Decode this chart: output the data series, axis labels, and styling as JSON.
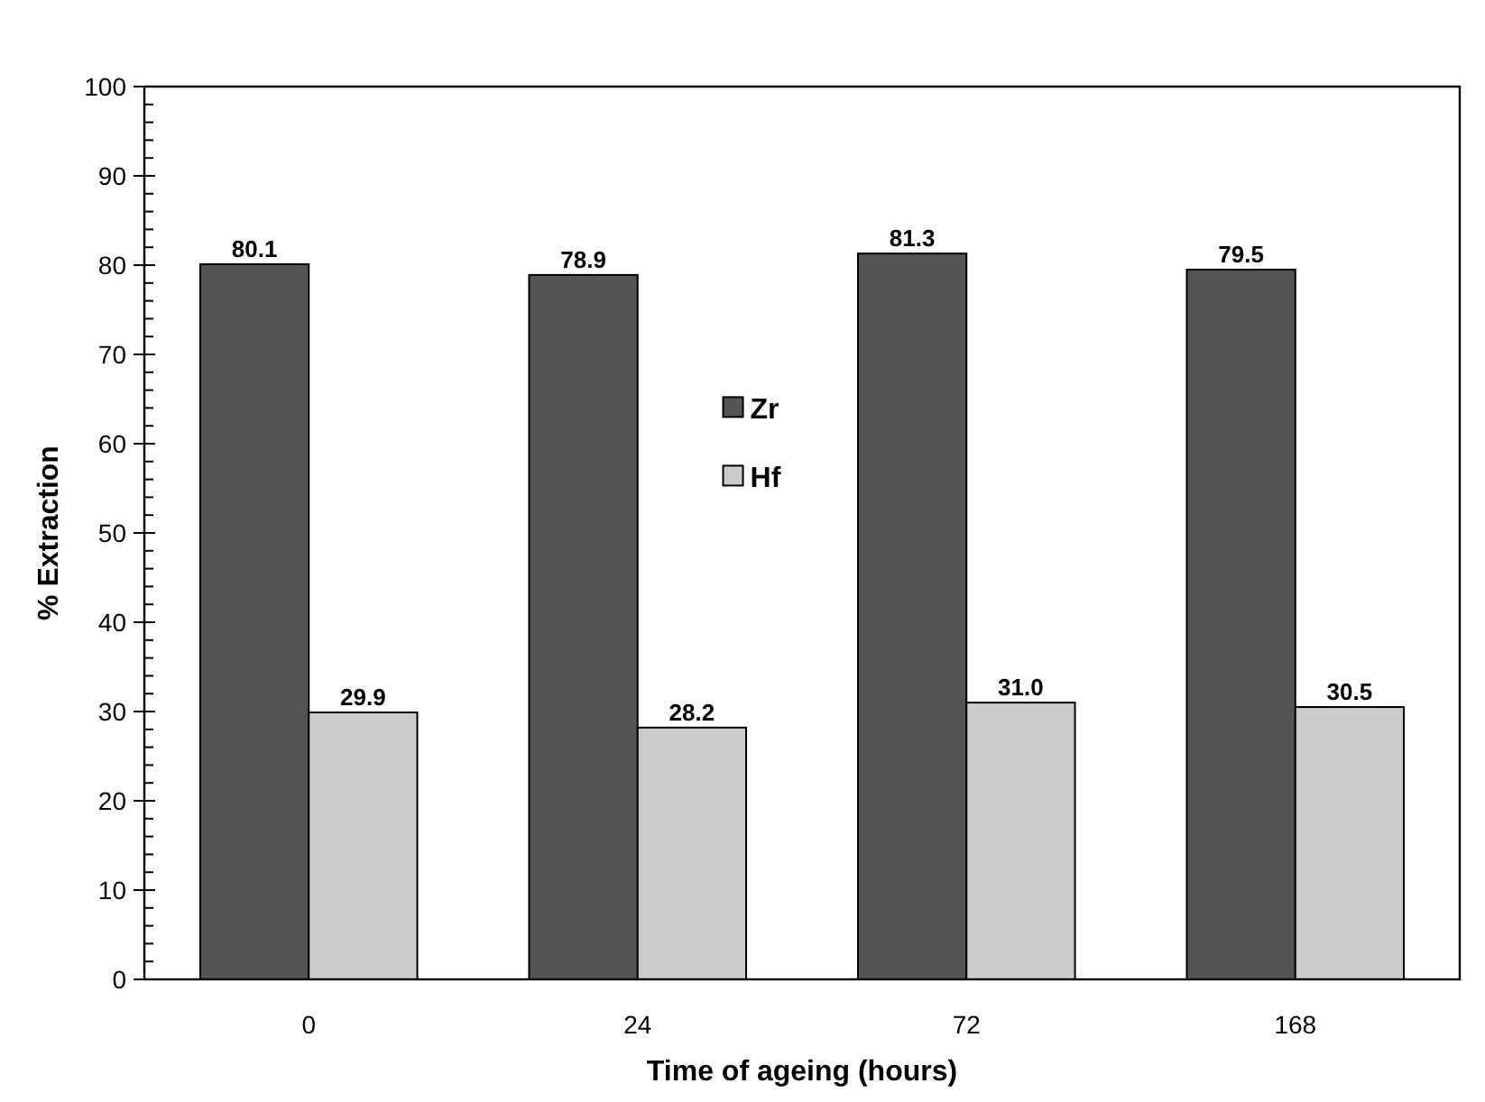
{
  "chart_data": {
    "type": "bar",
    "xlabel": "Time of ageing (hours)",
    "ylabel": "% Extraction",
    "categories": [
      "0",
      "24",
      "72",
      "168"
    ],
    "series": [
      {
        "name": "Zr",
        "color": "#555555",
        "values": [
          80.1,
          78.9,
          81.3,
          79.5
        ],
        "value_labels": [
          "80.1",
          "78.9",
          "81.3",
          "79.5"
        ]
      },
      {
        "name": "Hf",
        "color": "#cccccc",
        "values": [
          29.9,
          28.2,
          31.0,
          30.5
        ],
        "value_labels": [
          "29.9",
          "28.2",
          "31.0",
          "30.5"
        ]
      }
    ],
    "ylim": [
      0,
      100
    ],
    "yticks": [
      0,
      10,
      20,
      30,
      40,
      50,
      60,
      70,
      80,
      90,
      100
    ],
    "grid": false,
    "legend": "center"
  }
}
